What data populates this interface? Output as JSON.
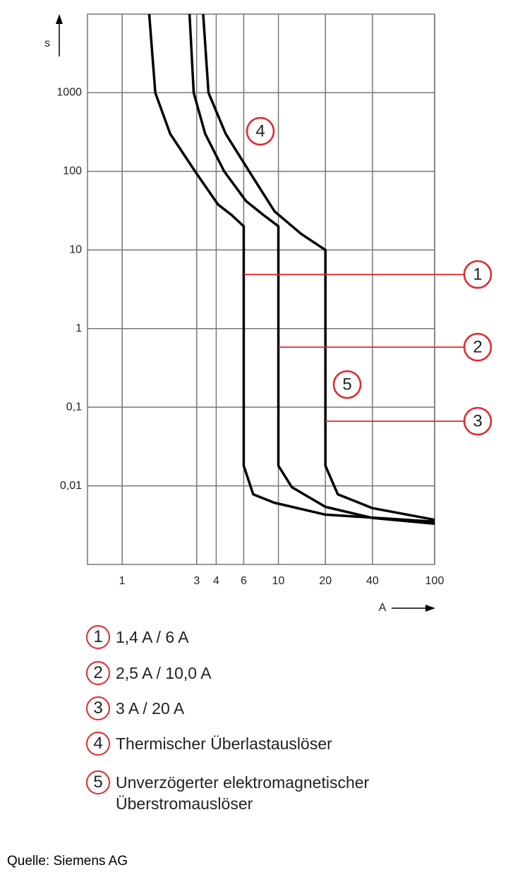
{
  "chart_data": {
    "type": "line",
    "x_axis_label": "A",
    "y_axis_label": "s",
    "xlim": [
      0.6,
      100
    ],
    "ylim": [
      0.001,
      10000
    ],
    "xticks": [
      1,
      3,
      4,
      6,
      10,
      20,
      40,
      100
    ],
    "yticks": [
      {
        "value": 0.01,
        "label": "0,01"
      },
      {
        "value": 0.1,
        "label": "0,1"
      },
      1,
      10,
      100,
      1000
    ],
    "log_x": true,
    "log_y": true,
    "grid": true,
    "callout_color": "#e3262b",
    "series": [
      {
        "marker": "1",
        "name": "1,4 A / 6 A",
        "color": "#000000",
        "x": [
          1.49,
          1.63,
          2.03,
          2.93,
          4.1,
          5,
          6,
          6,
          6.9,
          9.4,
          20,
          100
        ],
        "values": [
          10000,
          1000,
          300,
          100,
          38,
          28,
          20,
          0.018,
          0.0078,
          0.0061,
          0.0043,
          0.0035
        ]
      },
      {
        "marker": "2",
        "name": "2,5 A / 10,0 A",
        "color": "#000000",
        "x": [
          2.7,
          2.87,
          3.4,
          4.5,
          6.2,
          8,
          10,
          10,
          12.2,
          20,
          40,
          100
        ],
        "values": [
          10000,
          1000,
          300,
          100,
          42,
          28,
          20,
          0.018,
          0.0096,
          0.0054,
          0.0039,
          0.0033
        ]
      },
      {
        "marker": "3",
        "name": "3 A / 20 A",
        "color": "#000000",
        "x": [
          3.3,
          3.57,
          4.6,
          6.5,
          9.45,
          14,
          20,
          20,
          24,
          40,
          100
        ],
        "values": [
          10000,
          1000,
          300,
          100,
          31,
          16,
          10,
          0.018,
          0.0078,
          0.0052,
          0.0037
        ]
      }
    ],
    "annotations": [
      {
        "marker": "4",
        "label": "Thermischer Überlastauslöser"
      },
      {
        "marker": "5",
        "label": "Unverzögerter elektromagnetischer Überstromauslöser"
      }
    ]
  },
  "source": "Quelle: Siemens AG"
}
